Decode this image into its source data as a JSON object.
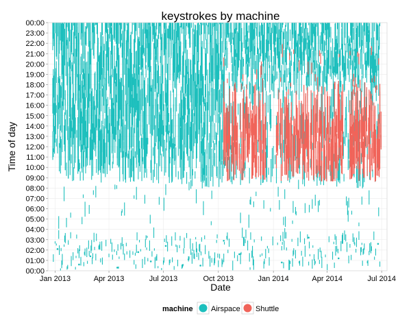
{
  "chart_data": {
    "type": "scatter",
    "title": "keystrokes by machine",
    "xlabel": "Date",
    "ylabel": "Time of day",
    "xlim": [
      "2012-12-20",
      "2014-07-10"
    ],
    "ylim": [
      "00:00",
      "24:00"
    ],
    "x_ticks": [
      {
        "date": "2013-01-01",
        "label": "Jan 2013"
      },
      {
        "date": "2013-04-01",
        "label": "Apr 2013"
      },
      {
        "date": "2013-07-01",
        "label": "Jul 2013"
      },
      {
        "date": "2013-10-01",
        "label": "Oct 2013"
      },
      {
        "date": "2014-01-01",
        "label": "Jan 2014"
      },
      {
        "date": "2014-04-01",
        "label": "Apr 2014"
      },
      {
        "date": "2014-07-01",
        "label": "Jul 2014"
      }
    ],
    "y_ticks": [
      "00:00",
      "01:00",
      "02:00",
      "03:00",
      "04:00",
      "05:00",
      "06:00",
      "07:00",
      "08:00",
      "09:00",
      "10:00",
      "11:00",
      "12:00",
      "13:00",
      "14:00",
      "15:00",
      "16:00",
      "17:00",
      "18:00",
      "19:00",
      "20:00",
      "21:00",
      "22:00",
      "23:00",
      "00:00"
    ],
    "grid": true,
    "legend": {
      "title": "machine",
      "position": "bottom",
      "entries": [
        {
          "name": "Airspace",
          "color": "#1dbfbd"
        },
        {
          "name": "Shuttle",
          "color": "#f0645a"
        }
      ]
    },
    "series": [
      {
        "name": "Airspace",
        "color": "#1dbfbd",
        "first_date": "2012-12-28",
        "last_date": "2014-06-28",
        "dense_band_start": [
          "2012-12-28",
          "2013-02-01",
          "2013-04-01",
          "2013-06-01",
          "2013-08-01",
          "2013-10-01",
          "2013-12-01",
          "2014-02-01",
          "2014-04-01",
          "2014-06-28"
        ],
        "dense_band_start_hour": [
          9.5,
          8.6,
          8.5,
          8.5,
          8.2,
          8.0,
          8.3,
          8.2,
          7.8,
          8.0
        ],
        "night_points": [
          {
            "date": "2013-01-05",
            "hour": 2.1
          },
          {
            "date": "2013-02-10",
            "hour": 0.6
          },
          {
            "date": "2013-03-01",
            "hour": 1.4
          },
          {
            "date": "2013-04-15",
            "hour": 0.3
          },
          {
            "date": "2013-05-20",
            "hour": 1.8
          },
          {
            "date": "2013-06-10",
            "hour": 0.9
          },
          {
            "date": "2013-07-05",
            "hour": 2.4
          },
          {
            "date": "2013-08-12",
            "hour": 1.1
          },
          {
            "date": "2013-09-01",
            "hour": 0.5
          },
          {
            "date": "2013-10-10",
            "hour": 2.9
          },
          {
            "date": "2013-11-05",
            "hour": 1.6
          },
          {
            "date": "2014-01-15",
            "hour": 0.8
          },
          {
            "date": "2014-03-01",
            "hour": 3.2
          },
          {
            "date": "2014-04-20",
            "hour": 1.2
          },
          {
            "date": "2014-06-25",
            "hour": 2.6
          }
        ]
      },
      {
        "name": "Shuttle",
        "color": "#f0645a",
        "first_date": "2013-10-10",
        "last_date": "2014-06-30",
        "core_start_hour": 9.8,
        "core_end_hour": 17.0
      }
    ]
  }
}
